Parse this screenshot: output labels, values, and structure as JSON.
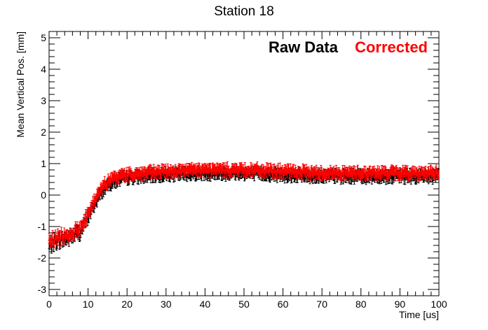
{
  "chart_data": {
    "type": "scatter",
    "title": "Station 18",
    "xlabel": "Time [us]",
    "ylabel": "Mean Vertical Pos. [mm]",
    "xlim": [
      0,
      100
    ],
    "ylim": [
      -3.2,
      5.2
    ],
    "x_ticks": [
      0,
      10,
      20,
      30,
      40,
      50,
      60,
      70,
      80,
      90,
      100
    ],
    "y_ticks": [
      -3,
      -2,
      -1,
      0,
      1,
      2,
      3,
      4,
      5
    ],
    "grid": false,
    "legend_position": "top-right",
    "point_spacing": 0.15,
    "error_bar": 0.13,
    "control_points": {
      "x": [
        0,
        1,
        2,
        4,
        6,
        8,
        10,
        12,
        14,
        16,
        18,
        20,
        25,
        30,
        40,
        50,
        60,
        70,
        80,
        90,
        100
      ],
      "y": [
        -1.6,
        -1.5,
        -1.45,
        -1.4,
        -1.3,
        -1.15,
        -0.7,
        -0.2,
        0.2,
        0.4,
        0.5,
        0.55,
        0.6,
        0.65,
        0.7,
        0.7,
        0.65,
        0.6,
        0.6,
        0.6,
        0.6
      ]
    },
    "series": [
      {
        "name": "Raw Data",
        "color": "#000000",
        "offset": 0.0
      },
      {
        "name": "Corrected",
        "color": "#ff0000",
        "offset": 0.1
      }
    ]
  }
}
